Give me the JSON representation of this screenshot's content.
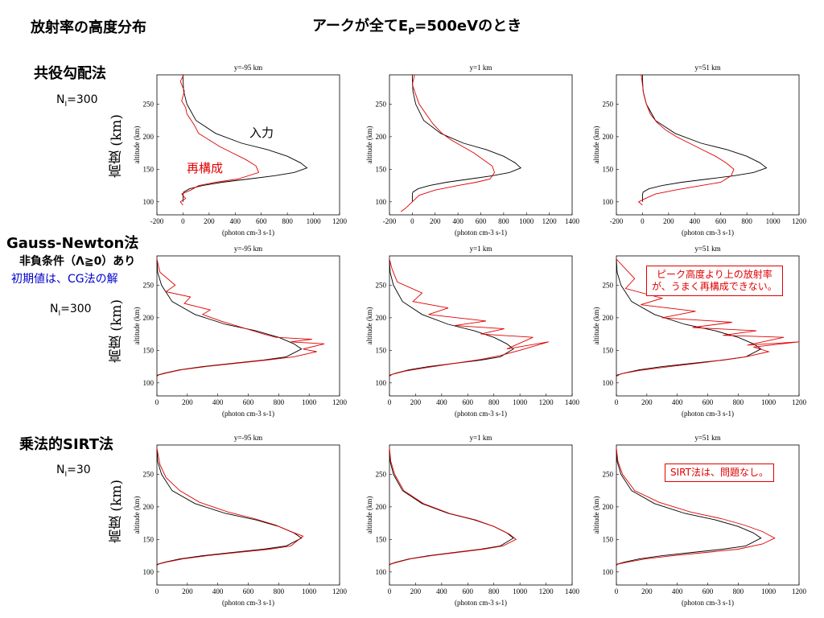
{
  "slide": {
    "title_left": "放射率の高度分布",
    "title_center_prefix": "アークが全てE",
    "title_center_sub": "P",
    "title_center_suffix": "=500eVのとき",
    "rows": [
      {
        "method": "共役勾配法",
        "extra": [],
        "n_label": "N",
        "n_sub": "I",
        "n_value": "=300",
        "ylabel_jp": "高度 (km)"
      },
      {
        "method": "Gauss-Newton法",
        "extra": [
          "非負条件（Λ≧0）あり",
          "初期値は、CG法の解"
        ],
        "n_label": "N",
        "n_sub": "I",
        "n_value": "=300",
        "ylabel_jp": "高度 (km)"
      },
      {
        "method": "乗法的SIRT法",
        "extra": [],
        "n_label": "N",
        "n_sub": "I",
        "n_value": "=30",
        "ylabel_jp": "高度 (km)"
      }
    ],
    "annotations": {
      "input_label": "入力",
      "recon_label": "再構成",
      "callout_gn_line1": "ピーク高度より上の放射率",
      "callout_gn_line2": "が、うまく再構成できない。",
      "callout_sirt": "SIRT法は、問題なし。"
    },
    "colors": {
      "input": "#000000",
      "reconstruction": "#e00000",
      "note_blue": "#0000cc"
    }
  },
  "chart_data": [
    {
      "type": "line",
      "row": 0,
      "col": 0,
      "title": "y=-95 km",
      "xlabel": "(photon cm-3 s-1)",
      "ylabel": "altitude (km)",
      "xlim": [
        -200,
        1200
      ],
      "xticks": [
        -200,
        0,
        200,
        400,
        600,
        800,
        1000,
        1200
      ],
      "ylim": [
        80,
        295
      ],
      "yticks": [
        100,
        150,
        200,
        250
      ],
      "series": [
        {
          "role": "input",
          "x": [
            0,
            0,
            1,
            5,
            50,
            150,
            300,
            500,
            700,
            850,
            950,
            900,
            800,
            650,
            450,
            250,
            100,
            30,
            5,
            0,
            0
          ],
          "y": [
            100,
            110,
            112,
            115,
            120,
            125,
            130,
            135,
            140,
            145,
            152,
            160,
            170,
            180,
            190,
            205,
            225,
            250,
            270,
            290,
            295
          ]
        },
        {
          "role": "reconstruction",
          "x": [
            0,
            -20,
            20,
            -10,
            60,
            120,
            250,
            420,
            580,
            560,
            480,
            380,
            280,
            200,
            120,
            80,
            30,
            20,
            -10,
            10,
            -20,
            5
          ],
          "y": [
            95,
            100,
            105,
            112,
            118,
            125,
            130,
            135,
            145,
            155,
            165,
            175,
            185,
            195,
            205,
            220,
            235,
            245,
            255,
            270,
            285,
            295
          ]
        }
      ]
    },
    {
      "type": "line",
      "row": 0,
      "col": 1,
      "title": "y=1 km",
      "xlabel": "(photon cm-3 s-1)",
      "ylabel": "altitude (km)",
      "xlim": [
        -200,
        1400
      ],
      "xticks": [
        -200,
        0,
        200,
        400,
        600,
        800,
        1000,
        1200,
        1400
      ],
      "ylim": [
        80,
        295
      ],
      "yticks": [
        100,
        150,
        200,
        250
      ],
      "series": [
        {
          "role": "input",
          "x": [
            0,
            0,
            1,
            5,
            50,
            150,
            300,
            500,
            700,
            850,
            950,
            900,
            800,
            650,
            450,
            250,
            100,
            30,
            5,
            0,
            0
          ],
          "y": [
            100,
            110,
            112,
            115,
            120,
            125,
            130,
            135,
            140,
            145,
            152,
            160,
            170,
            180,
            190,
            205,
            225,
            250,
            270,
            290,
            295
          ]
        },
        {
          "role": "reconstruction",
          "x": [
            -100,
            -60,
            0,
            60,
            200,
            400,
            560,
            680,
            720,
            700,
            620,
            540,
            440,
            340,
            260,
            180,
            120,
            60,
            30,
            0,
            20
          ],
          "y": [
            85,
            90,
            100,
            110,
            118,
            125,
            130,
            135,
            145,
            155,
            165,
            175,
            185,
            195,
            205,
            220,
            235,
            250,
            265,
            280,
            295
          ]
        }
      ]
    },
    {
      "type": "line",
      "row": 0,
      "col": 2,
      "title": "y=51 km",
      "xlabel": "(photon cm-3 s-1)",
      "ylabel": "altitude (km)",
      "xlim": [
        -200,
        1200
      ],
      "xticks": [
        -200,
        0,
        200,
        400,
        600,
        800,
        1000,
        1200
      ],
      "ylim": [
        80,
        295
      ],
      "yticks": [
        100,
        150,
        200,
        250
      ],
      "series": [
        {
          "role": "input",
          "x": [
            0,
            0,
            1,
            5,
            50,
            150,
            300,
            500,
            700,
            850,
            950,
            900,
            800,
            650,
            450,
            250,
            100,
            30,
            5,
            0,
            0
          ],
          "y": [
            100,
            110,
            112,
            115,
            120,
            125,
            130,
            135,
            140,
            145,
            152,
            160,
            170,
            180,
            190,
            205,
            225,
            250,
            270,
            290,
            295
          ]
        },
        {
          "role": "reconstruction",
          "x": [
            0,
            -30,
            20,
            100,
            250,
            450,
            600,
            680,
            700,
            640,
            560,
            460,
            360,
            260,
            180,
            110,
            60,
            30,
            10,
            0,
            -10
          ],
          "y": [
            95,
            100,
            105,
            112,
            118,
            125,
            130,
            140,
            150,
            160,
            170,
            180,
            190,
            200,
            210,
            222,
            235,
            250,
            265,
            280,
            295
          ]
        }
      ]
    },
    {
      "type": "line",
      "row": 1,
      "col": 0,
      "title": "y=-95 km",
      "xlabel": "(photon cm-3 s-1)",
      "ylabel": "altitude (km)",
      "xlim": [
        0,
        1200
      ],
      "xticks": [
        0,
        200,
        400,
        600,
        800,
        1000,
        1200
      ],
      "ylim": [
        80,
        295
      ],
      "yticks": [
        100,
        150,
        200,
        250
      ],
      "series": [
        {
          "role": "input",
          "x": [
            0,
            5,
            50,
            150,
            300,
            500,
            700,
            850,
            950,
            900,
            800,
            650,
            450,
            250,
            100,
            30,
            5,
            0
          ],
          "y": [
            110,
            112,
            115,
            120,
            125,
            130,
            135,
            140,
            152,
            160,
            170,
            180,
            190,
            205,
            225,
            250,
            270,
            290
          ]
        },
        {
          "role": "reconstruction",
          "x": [
            0,
            10,
            60,
            160,
            320,
            520,
            720,
            900,
            1050,
            960,
            1100,
            880,
            1020,
            780,
            700,
            560,
            420,
            300,
            350,
            180,
            220,
            60,
            120,
            20,
            0
          ],
          "y": [
            110,
            112,
            115,
            120,
            125,
            130,
            135,
            140,
            148,
            152,
            160,
            163,
            167,
            170,
            175,
            185,
            195,
            205,
            212,
            222,
            232,
            240,
            250,
            270,
            290
          ]
        }
      ]
    },
    {
      "type": "line",
      "row": 1,
      "col": 1,
      "title": "y=1 km",
      "xlabel": "(photon cm-3 s-1)",
      "ylabel": "altitude (km)",
      "xlim": [
        0,
        1400
      ],
      "xticks": [
        0,
        200,
        400,
        600,
        800,
        1000,
        1200,
        1400
      ],
      "ylim": [
        80,
        295
      ],
      "yticks": [
        100,
        150,
        200,
        250
      ],
      "series": [
        {
          "role": "input",
          "x": [
            0,
            5,
            50,
            150,
            300,
            500,
            700,
            850,
            950,
            900,
            800,
            650,
            450,
            250,
            100,
            30,
            5,
            0
          ],
          "y": [
            110,
            112,
            115,
            120,
            125,
            130,
            135,
            140,
            152,
            160,
            170,
            180,
            190,
            205,
            225,
            250,
            270,
            290
          ]
        },
        {
          "role": "reconstruction",
          "x": [
            0,
            20,
            120,
            300,
            500,
            700,
            850,
            1000,
            1220,
            900,
            1100,
            700,
            880,
            500,
            740,
            300,
            450,
            180,
            250,
            60,
            20,
            0
          ],
          "y": [
            110,
            113,
            118,
            124,
            130,
            136,
            142,
            150,
            163,
            152,
            170,
            175,
            183,
            188,
            195,
            205,
            215,
            225,
            238,
            255,
            275,
            290
          ]
        }
      ]
    },
    {
      "type": "line",
      "row": 1,
      "col": 2,
      "title": "y=51 km",
      "xlabel": "(photon cm-3 s-1)",
      "ylabel": "altitude (km)",
      "xlim": [
        0,
        1200
      ],
      "xticks": [
        0,
        200,
        400,
        600,
        800,
        1000,
        1200
      ],
      "ylim": [
        80,
        295
      ],
      "yticks": [
        100,
        150,
        200,
        250
      ],
      "series": [
        {
          "role": "input",
          "x": [
            0,
            5,
            50,
            150,
            300,
            500,
            700,
            850,
            950,
            900,
            800,
            650,
            450,
            250,
            100,
            30,
            5,
            0
          ],
          "y": [
            110,
            112,
            115,
            120,
            125,
            130,
            135,
            140,
            152,
            160,
            170,
            180,
            190,
            205,
            225,
            250,
            270,
            290
          ]
        },
        {
          "role": "reconstruction",
          "x": [
            0,
            30,
            150,
            350,
            600,
            850,
            1000,
            900,
            1200,
            860,
            1100,
            700,
            920,
            500,
            760,
            300,
            520,
            160,
            300,
            60,
            120,
            0
          ],
          "y": [
            110,
            114,
            119,
            125,
            132,
            140,
            148,
            155,
            163,
            158,
            170,
            173,
            180,
            185,
            193,
            200,
            210,
            220,
            230,
            245,
            260,
            290
          ]
        }
      ]
    },
    {
      "type": "line",
      "row": 2,
      "col": 0,
      "title": "y=-95 km",
      "xlabel": "(photon cm-3 s-1)",
      "ylabel": "altitude (km)",
      "xlim": [
        0,
        1200
      ],
      "xticks": [
        0,
        200,
        400,
        600,
        800,
        1000,
        1200
      ],
      "ylim": [
        80,
        295
      ],
      "yticks": [
        100,
        150,
        200,
        250
      ],
      "series": [
        {
          "role": "input",
          "x": [
            0,
            5,
            50,
            150,
            300,
            500,
            700,
            850,
            950,
            900,
            800,
            650,
            450,
            250,
            100,
            30,
            5,
            0
          ],
          "y": [
            110,
            112,
            115,
            120,
            125,
            130,
            135,
            140,
            152,
            160,
            170,
            180,
            190,
            205,
            225,
            250,
            270,
            290
          ]
        },
        {
          "role": "reconstruction",
          "x": [
            0,
            10,
            60,
            170,
            330,
            530,
            740,
            880,
            960,
            880,
            780,
            640,
            470,
            280,
            150,
            60,
            20,
            0
          ],
          "y": [
            110,
            112,
            115,
            120,
            125,
            130,
            135,
            140,
            155,
            162,
            172,
            182,
            192,
            207,
            225,
            245,
            265,
            290
          ]
        }
      ]
    },
    {
      "type": "line",
      "row": 2,
      "col": 1,
      "title": "y=1 km",
      "xlabel": "(photon cm-3 s-1)",
      "ylabel": "altitude (km)",
      "xlim": [
        0,
        1400
      ],
      "xticks": [
        0,
        200,
        400,
        600,
        800,
        1000,
        1200,
        1400
      ],
      "ylim": [
        80,
        295
      ],
      "yticks": [
        100,
        150,
        200,
        250
      ],
      "series": [
        {
          "role": "input",
          "x": [
            0,
            5,
            50,
            150,
            300,
            500,
            700,
            850,
            950,
            900,
            800,
            650,
            450,
            250,
            100,
            30,
            5,
            0
          ],
          "y": [
            110,
            112,
            115,
            120,
            125,
            130,
            135,
            140,
            152,
            160,
            170,
            180,
            190,
            205,
            225,
            250,
            270,
            290
          ]
        },
        {
          "role": "reconstruction",
          "x": [
            0,
            10,
            60,
            160,
            320,
            520,
            720,
            870,
            970,
            920,
            800,
            660,
            460,
            260,
            110,
            40,
            10,
            0
          ],
          "y": [
            110,
            112,
            115,
            120,
            125,
            130,
            135,
            140,
            150,
            158,
            170,
            180,
            190,
            205,
            225,
            250,
            270,
            290
          ]
        }
      ]
    },
    {
      "type": "line",
      "row": 2,
      "col": 2,
      "title": "y=51 km",
      "xlabel": "(photon cm-3 s-1)",
      "ylabel": "altitude (km)",
      "xlim": [
        0,
        1200
      ],
      "xticks": [
        0,
        200,
        400,
        600,
        800,
        1000,
        1200
      ],
      "ylim": [
        80,
        295
      ],
      "yticks": [
        100,
        150,
        200,
        250
      ],
      "series": [
        {
          "role": "input",
          "x": [
            0,
            5,
            50,
            150,
            300,
            500,
            700,
            850,
            950,
            900,
            800,
            650,
            450,
            250,
            100,
            30,
            5,
            0
          ],
          "y": [
            110,
            112,
            115,
            120,
            125,
            130,
            135,
            140,
            152,
            160,
            170,
            180,
            190,
            205,
            225,
            250,
            270,
            290
          ]
        },
        {
          "role": "reconstruction",
          "x": [
            0,
            10,
            70,
            190,
            370,
            590,
            800,
            960,
            1040,
            960,
            840,
            690,
            490,
            280,
            120,
            40,
            10,
            0
          ],
          "y": [
            110,
            112,
            115,
            120,
            125,
            130,
            135,
            143,
            152,
            162,
            172,
            182,
            192,
            207,
            225,
            250,
            270,
            290
          ]
        }
      ]
    }
  ]
}
